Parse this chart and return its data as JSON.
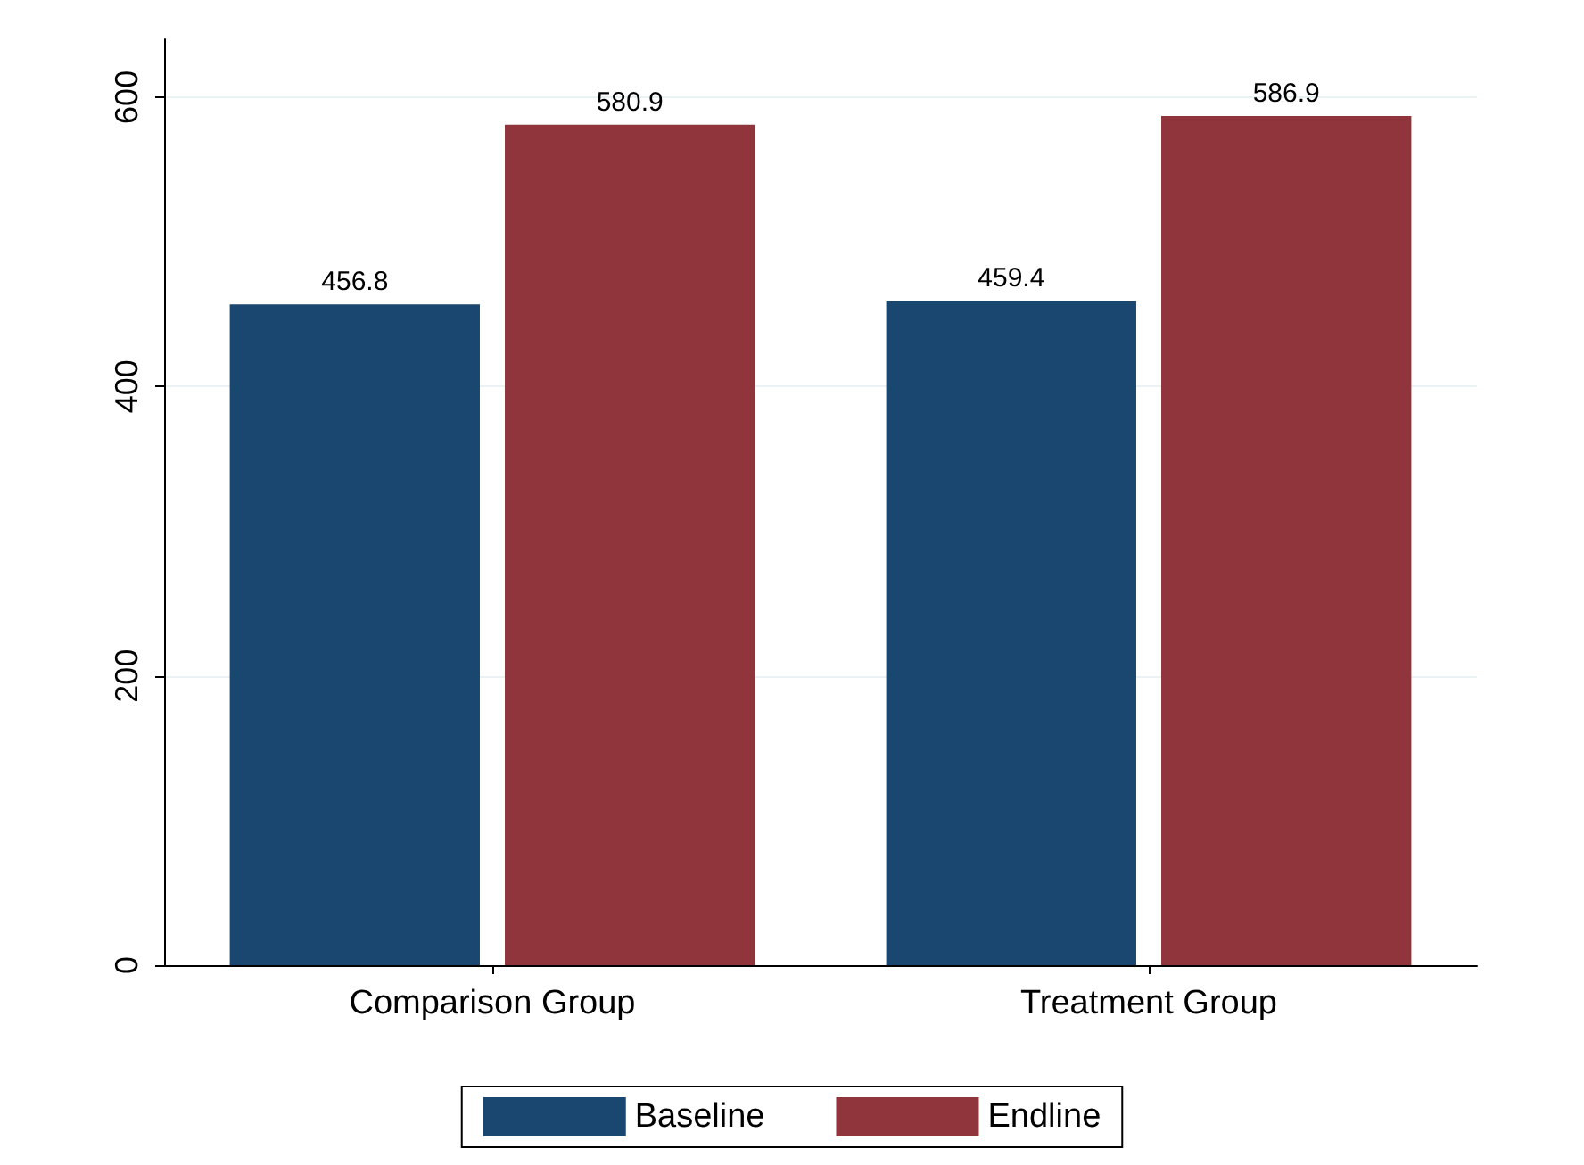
{
  "chart_data": {
    "type": "bar",
    "categories": [
      "Comparison Group",
      "Treatment Group"
    ],
    "series": [
      {
        "name": "Baseline",
        "color": "#1a476f",
        "values": [
          456.8,
          459.4
        ]
      },
      {
        "name": "Endline",
        "color": "#90353b",
        "values": [
          580.9,
          586.9
        ]
      }
    ],
    "ylim": [
      0,
      640
    ],
    "yticks": [
      0,
      200,
      400,
      600
    ],
    "grid": "y",
    "legend": "bottom",
    "data_labels": true
  }
}
